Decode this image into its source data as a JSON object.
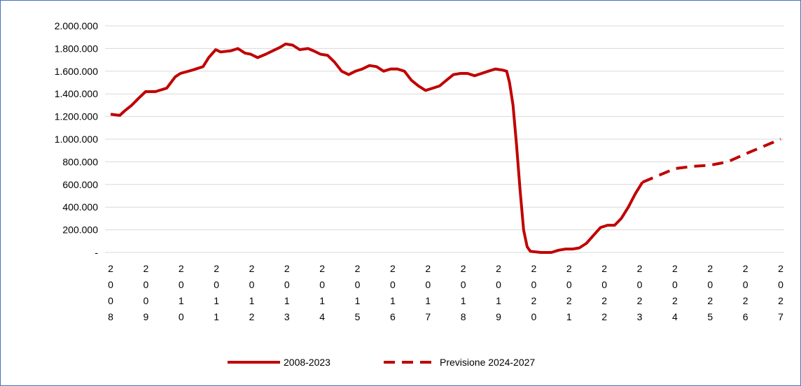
{
  "chart_data": {
    "type": "line",
    "ylim": [
      0,
      2000000
    ],
    "yticks": [
      {
        "value": 0,
        "label": "-"
      },
      {
        "value": 200000,
        "label": "200.000"
      },
      {
        "value": 400000,
        "label": "400.000"
      },
      {
        "value": 600000,
        "label": "600.000"
      },
      {
        "value": 800000,
        "label": "800.000"
      },
      {
        "value": 1000000,
        "label": "1.000.000"
      },
      {
        "value": 1200000,
        "label": "1.200.000"
      },
      {
        "value": 1400000,
        "label": "1.400.000"
      },
      {
        "value": 1600000,
        "label": "1.600.000"
      },
      {
        "value": 1800000,
        "label": "1.800.000"
      },
      {
        "value": 2000000,
        "label": "2.000.000"
      }
    ],
    "xlim": [
      2008,
      2027
    ],
    "xticks": [
      2008,
      2009,
      2010,
      2011,
      2012,
      2013,
      2014,
      2015,
      2016,
      2017,
      2018,
      2019,
      2020,
      2021,
      2022,
      2023,
      2024,
      2025,
      2026,
      2027
    ],
    "grid": true,
    "legend": "bottom",
    "series": [
      {
        "name": "2008-2023",
        "color": "#c00000",
        "line_style": "solid",
        "x": [
          2008.0,
          2008.26,
          2008.4,
          2008.6,
          2008.79,
          2008.99,
          2009.27,
          2009.59,
          2009.83,
          2009.98,
          2010.32,
          2010.62,
          2010.78,
          2010.98,
          2011.12,
          2011.41,
          2011.61,
          2011.81,
          2011.97,
          2012.17,
          2012.4,
          2012.6,
          2012.8,
          2012.96,
          2013.16,
          2013.36,
          2013.6,
          2013.75,
          2013.95,
          2014.15,
          2014.35,
          2014.55,
          2014.75,
          2014.94,
          2015.14,
          2015.34,
          2015.54,
          2015.74,
          2015.94,
          2016.13,
          2016.33,
          2016.53,
          2016.73,
          2016.93,
          2017.13,
          2017.33,
          2017.52,
          2017.72,
          2017.92,
          2018.12,
          2018.32,
          2018.52,
          2018.71,
          2018.91,
          2019.11,
          2019.23,
          2019.31,
          2019.41,
          2019.51,
          2019.61,
          2019.71,
          2019.81,
          2019.9,
          2020.2,
          2020.5,
          2020.7,
          2020.9,
          2021.1,
          2021.29,
          2021.49,
          2021.69,
          2021.89,
          2022.09,
          2022.29,
          2022.48,
          2022.68,
          2022.88,
          2023.08
        ],
        "values": [
          1220000,
          1210000,
          1250000,
          1300000,
          1360000,
          1420000,
          1420000,
          1450000,
          1550000,
          1580000,
          1610000,
          1640000,
          1720000,
          1790000,
          1770000,
          1780000,
          1800000,
          1760000,
          1750000,
          1720000,
          1750000,
          1780000,
          1810000,
          1840000,
          1830000,
          1790000,
          1800000,
          1780000,
          1750000,
          1740000,
          1680000,
          1600000,
          1570000,
          1600000,
          1620000,
          1650000,
          1640000,
          1600000,
          1620000,
          1620000,
          1600000,
          1520000,
          1470000,
          1430000,
          1450000,
          1470000,
          1520000,
          1570000,
          1580000,
          1580000,
          1560000,
          1580000,
          1600000,
          1620000,
          1610000,
          1600000,
          1500000,
          1300000,
          950000,
          550000,
          200000,
          50000,
          10000,
          0,
          0,
          20000,
          30000,
          30000,
          40000,
          80000,
          150000,
          220000,
          240000,
          240000,
          300000,
          400000,
          520000,
          620000
        ]
      },
      {
        "name": "Previsione 2024-2027",
        "color": "#c00000",
        "line_style": "dashed",
        "x": [
          2023.08,
          2024.0,
          2024.5,
          2025.0,
          2025.5,
          2026.0,
          2027.0
        ],
        "values": [
          620000,
          740000,
          760000,
          770000,
          800000,
          870000,
          1000000
        ]
      }
    ]
  }
}
